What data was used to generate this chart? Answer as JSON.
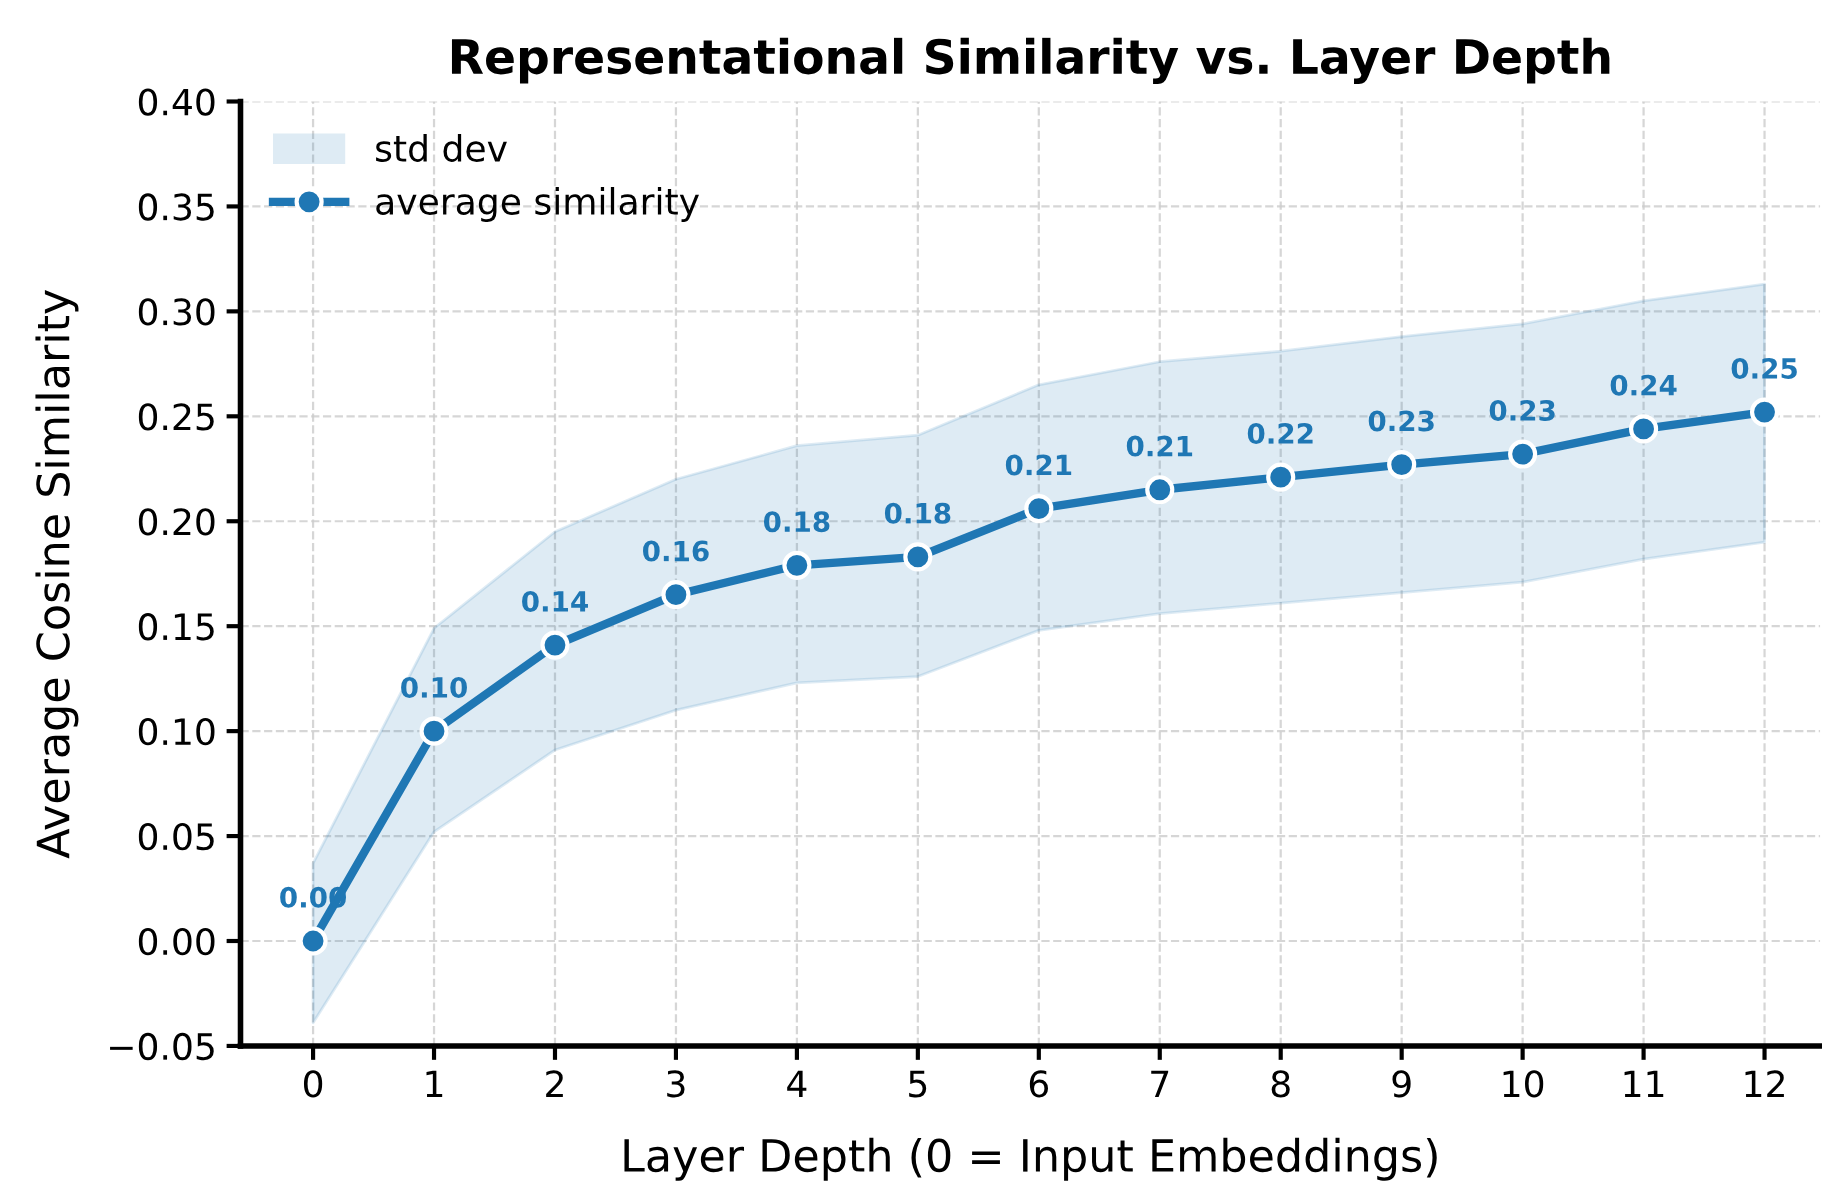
{
  "chart_data": {
    "type": "line",
    "title": "Representational Similarity vs. Layer Depth",
    "xlabel": "Layer Depth (0 = Input Embeddings)",
    "ylabel": "Average Cosine Similarity",
    "x": [
      0,
      1,
      2,
      3,
      4,
      5,
      6,
      7,
      8,
      9,
      10,
      11,
      12
    ],
    "series": [
      {
        "name": "average similarity",
        "color": "#1f77b4",
        "values": [
          0.0,
          0.1,
          0.141,
          0.165,
          0.179,
          0.183,
          0.206,
          0.215,
          0.221,
          0.227,
          0.232,
          0.244,
          0.252
        ],
        "lower": [
          -0.039,
          0.052,
          0.091,
          0.11,
          0.123,
          0.126,
          0.148,
          0.156,
          0.161,
          0.166,
          0.171,
          0.182,
          0.19
        ],
        "upper": [
          0.037,
          0.149,
          0.195,
          0.22,
          0.236,
          0.241,
          0.265,
          0.276,
          0.281,
          0.288,
          0.294,
          0.305,
          0.313
        ],
        "value_labels": [
          "0.00",
          "0.10",
          "0.14",
          "0.16",
          "0.18",
          "0.18",
          "0.21",
          "0.21",
          "0.22",
          "0.23",
          "0.23",
          "0.24",
          "0.25"
        ]
      }
    ],
    "annotations": [
      "std dev"
    ],
    "xlim": [
      -0.6,
      12.46
    ],
    "xticks": [
      0,
      1,
      2,
      3,
      4,
      5,
      6,
      7,
      8,
      9,
      10,
      11,
      12
    ],
    "ylim": [
      -0.05,
      0.4
    ],
    "yticks": [
      {
        "value": -0.05,
        "label": "−0.05"
      },
      {
        "value": 0.0,
        "label": "0.00"
      },
      {
        "value": 0.05,
        "label": "0.05"
      },
      {
        "value": 0.1,
        "label": "0.10"
      },
      {
        "value": 0.15,
        "label": "0.15"
      },
      {
        "value": 0.2,
        "label": "0.20"
      },
      {
        "value": 0.25,
        "label": "0.25"
      },
      {
        "value": 0.3,
        "label": "0.30"
      },
      {
        "value": 0.35,
        "label": "0.35"
      },
      {
        "value": 0.4,
        "label": "0.40"
      }
    ],
    "grid": true,
    "legend": "top left",
    "marker": "circle",
    "line_style": "solid"
  }
}
